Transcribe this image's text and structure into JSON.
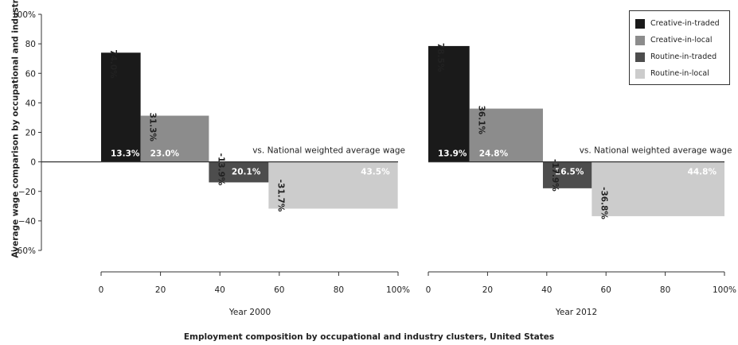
{
  "axis_titles": {
    "y": "Average wage comparison by occupational and industry clusters, United States",
    "x": "Employment composition by occupational and industry clusters, United States"
  },
  "reference_label": "vs. National weighted average wage",
  "legend": [
    {
      "name": "Creative-in-traded",
      "color": "#1a1a1a"
    },
    {
      "name": "Creative-in-local",
      "color": "#8c8c8c"
    },
    {
      "name": "Routine-in-traded",
      "color": "#4d4d4d"
    },
    {
      "name": "Routine-in-local",
      "color": "#cccccc"
    }
  ],
  "chart_data": [
    {
      "type": "bar",
      "variant": "variable-width (marimekko)",
      "subtitle": "Year 2000",
      "x_ticks": [
        "0",
        "20",
        "40",
        "60",
        "80",
        "100%"
      ],
      "y_ticks": [
        "100%",
        "80",
        "60",
        "40",
        "20",
        "0",
        "−20",
        "−40",
        "−60%"
      ],
      "xlim": [
        0,
        100
      ],
      "ylim": [
        -60,
        100
      ],
      "series": [
        {
          "name": "Creative-in-traded",
          "share": 13.3,
          "share_label": "13.3%",
          "value": 74.0,
          "value_label": "74.0%"
        },
        {
          "name": "Creative-in-local",
          "share": 23.0,
          "share_label": "23.0%",
          "value": 31.3,
          "value_label": "31.3%"
        },
        {
          "name": "Routine-in-traded",
          "share": 20.1,
          "share_label": "20.1%",
          "value": -13.9,
          "value_label": "-13.9%"
        },
        {
          "name": "Routine-in-local",
          "share": 43.5,
          "share_label": "43.5%",
          "value": -31.7,
          "value_label": "-31.7%"
        }
      ]
    },
    {
      "type": "bar",
      "variant": "variable-width (marimekko)",
      "subtitle": "Year 2012",
      "x_ticks": [
        "0",
        "20",
        "40",
        "60",
        "80",
        "100%"
      ],
      "xlim": [
        0,
        100
      ],
      "ylim": [
        -60,
        100
      ],
      "series": [
        {
          "name": "Creative-in-traded",
          "share": 13.9,
          "share_label": "13.9%",
          "value": 78.5,
          "value_label": "78.5%"
        },
        {
          "name": "Creative-in-local",
          "share": 24.8,
          "share_label": "24.8%",
          "value": 36.1,
          "value_label": "36.1%"
        },
        {
          "name": "Routine-in-traded",
          "share": 16.5,
          "share_label": "16.5%",
          "value": -17.9,
          "value_label": "-17.9%"
        },
        {
          "name": "Routine-in-local",
          "share": 44.8,
          "share_label": "44.8%",
          "value": -36.8,
          "value_label": "-36.8%"
        }
      ]
    }
  ]
}
